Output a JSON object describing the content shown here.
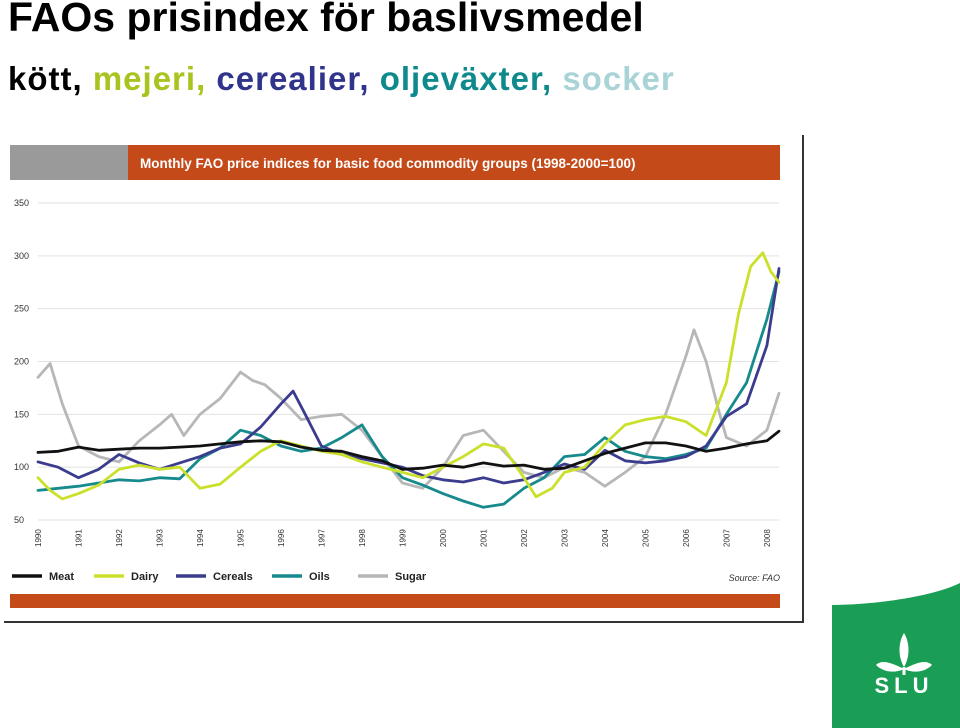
{
  "slide": {
    "title": "FAOs prisindex för baslivsmedel",
    "subtitle_parts": [
      {
        "text": "kött, ",
        "color": "#000000"
      },
      {
        "text": "mejeri, ",
        "color": "#a9c41f"
      },
      {
        "text": "cerealier, ",
        "color": "#30348a"
      },
      {
        "text": "oljeväxter, ",
        "color": "#0e8a8c"
      },
      {
        "text": "socker",
        "color": "#a9d3d6"
      }
    ]
  },
  "logo": {
    "text": "SLU",
    "color": "#1a9e55"
  },
  "chart_data": {
    "type": "line",
    "title": "Monthly FAO price indices for basic food commodity groups (1998-2000=100)",
    "source": "Source: FAO",
    "ylim": [
      50,
      350
    ],
    "yticks": [
      50,
      100,
      150,
      200,
      250,
      300,
      350
    ],
    "xlim": [
      1990,
      2008.3
    ],
    "xticks": [
      "1990",
      "1991",
      "1992",
      "1993",
      "1994",
      "1995",
      "1996",
      "1997",
      "1998",
      "1999",
      "2000",
      "2001",
      "2002",
      "2003",
      "2004",
      "2005",
      "2006",
      "2007",
      "2008"
    ],
    "grid": true,
    "legend_position": "bottom",
    "title_bar_color": "#c54a1a",
    "series": [
      {
        "name": "Meat",
        "color": "#111111",
        "x": [
          1990,
          1990.5,
          1991,
          1991.5,
          1992,
          1992.5,
          1993,
          1993.5,
          1994,
          1994.5,
          1995,
          1995.5,
          1996,
          1996.5,
          1997,
          1997.5,
          1998,
          1998.5,
          1999,
          1999.5,
          2000,
          2000.5,
          2001,
          2001.5,
          2002,
          2002.5,
          2003,
          2003.5,
          2004,
          2004.5,
          2005,
          2005.5,
          2006,
          2006.5,
          2007,
          2007.5,
          2008,
          2008.3
        ],
        "y": [
          114,
          115,
          119,
          116,
          117,
          118,
          118,
          119,
          120,
          122,
          124,
          125,
          124,
          119,
          116,
          115,
          110,
          106,
          98,
          99,
          102,
          100,
          104,
          101,
          102,
          98,
          99,
          106,
          113,
          118,
          123,
          123,
          120,
          115,
          118,
          122,
          125,
          134
        ]
      },
      {
        "name": "Dairy",
        "color": "#cbe02b",
        "x": [
          1990,
          1990.3,
          1990.6,
          1991,
          1991.5,
          1992,
          1992.5,
          1993,
          1993.5,
          1994,
          1994.5,
          1995,
          1995.5,
          1996,
          1996.5,
          1997,
          1997.5,
          1998,
          1998.5,
          1999,
          1999.5,
          2000,
          2000.5,
          2001,
          2001.5,
          2002,
          2002.3,
          2002.7,
          2003,
          2003.5,
          2004,
          2004.5,
          2005,
          2005.5,
          2006,
          2006.5,
          2007,
          2007.3,
          2007.6,
          2007.9,
          2008.1,
          2008.3
        ],
        "y": [
          90,
          78,
          70,
          75,
          83,
          98,
          102,
          98,
          100,
          80,
          84,
          100,
          115,
          125,
          120,
          115,
          112,
          105,
          100,
          95,
          90,
          100,
          110,
          122,
          118,
          90,
          72,
          80,
          95,
          100,
          122,
          140,
          145,
          148,
          143,
          130,
          180,
          245,
          290,
          303,
          285,
          275
        ]
      },
      {
        "name": "Cereals",
        "color": "#3c3c8f",
        "x": [
          1990,
          1990.5,
          1991,
          1991.5,
          1992,
          1992.5,
          1993,
          1993.5,
          1994,
          1994.5,
          1995,
          1995.5,
          1996,
          1996.3,
          1996.6,
          1997,
          1997.5,
          1998,
          1998.5,
          1999,
          1999.5,
          2000,
          2000.5,
          2001,
          2001.5,
          2002,
          2002.5,
          2003,
          2003.5,
          2004,
          2004.5,
          2005,
          2005.5,
          2006,
          2006.5,
          2007,
          2007.5,
          2008,
          2008.3
        ],
        "y": [
          105,
          100,
          90,
          98,
          112,
          104,
          98,
          104,
          110,
          118,
          122,
          138,
          160,
          172,
          150,
          120,
          112,
          108,
          104,
          100,
          92,
          88,
          86,
          90,
          85,
          88,
          95,
          103,
          98,
          116,
          106,
          104,
          106,
          110,
          120,
          148,
          160,
          215,
          288
        ]
      },
      {
        "name": "Oils",
        "color": "#168a8c",
        "x": [
          1990,
          1990.5,
          1991,
          1991.5,
          1992,
          1992.5,
          1993,
          1993.5,
          1994,
          1994.5,
          1995,
          1995.5,
          1996,
          1996.5,
          1997,
          1997.5,
          1998,
          1998.5,
          1999,
          1999.5,
          2000,
          2000.5,
          2001,
          2001.5,
          2002,
          2002.5,
          2003,
          2003.5,
          2004,
          2004.5,
          2005,
          2005.5,
          2006,
          2006.5,
          2007,
          2007.5,
          2008,
          2008.3
        ],
        "y": [
          78,
          80,
          82,
          85,
          88,
          87,
          90,
          89,
          108,
          118,
          135,
          130,
          120,
          115,
          118,
          128,
          140,
          110,
          90,
          83,
          75,
          68,
          62,
          65,
          80,
          90,
          110,
          112,
          128,
          115,
          110,
          108,
          112,
          118,
          150,
          180,
          240,
          285
        ]
      },
      {
        "name": "Sugar",
        "color": "#b7b7b7",
        "x": [
          1990,
          1990.3,
          1990.6,
          1991,
          1991.5,
          1992,
          1992.5,
          1993,
          1993.3,
          1993.6,
          1994,
          1994.5,
          1995,
          1995.3,
          1995.6,
          1996,
          1996.5,
          1997,
          1997.5,
          1998,
          1998.5,
          1999,
          1999.5,
          2000,
          2000.5,
          2001,
          2001.5,
          2002,
          2002.5,
          2003,
          2003.5,
          2004,
          2004.5,
          2005,
          2005.5,
          2006,
          2006.2,
          2006.5,
          2006.8,
          2007,
          2007.5,
          2008,
          2008.3
        ],
        "y": [
          185,
          198,
          160,
          120,
          110,
          105,
          125,
          140,
          150,
          130,
          150,
          165,
          190,
          182,
          178,
          165,
          145,
          148,
          150,
          135,
          110,
          85,
          80,
          100,
          130,
          135,
          115,
          95,
          90,
          100,
          95,
          82,
          95,
          110,
          150,
          205,
          230,
          200,
          155,
          128,
          120,
          135,
          170
        ]
      }
    ]
  }
}
